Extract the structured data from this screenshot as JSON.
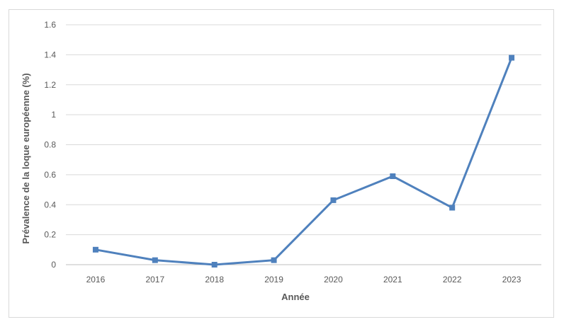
{
  "chart_data": {
    "type": "line",
    "x": [
      "2016",
      "2017",
      "2018",
      "2019",
      "2020",
      "2021",
      "2022",
      "2023"
    ],
    "series": [
      {
        "values": [
          0.1,
          0.03,
          0.0,
          0.03,
          0.43,
          0.59,
          0.38,
          1.38
        ],
        "color": "#4f81bd",
        "marker": "square"
      }
    ],
    "xlabel": "Année",
    "ylabel": "Prévalence de la loque européenne (%)",
    "ylim": [
      0,
      1.6
    ],
    "yticks": [
      "0",
      "0.2",
      "0.4",
      "0.6",
      "0.8",
      "1",
      "1.2",
      "1.4",
      "1.6"
    ],
    "grid": true,
    "legend": "none"
  }
}
